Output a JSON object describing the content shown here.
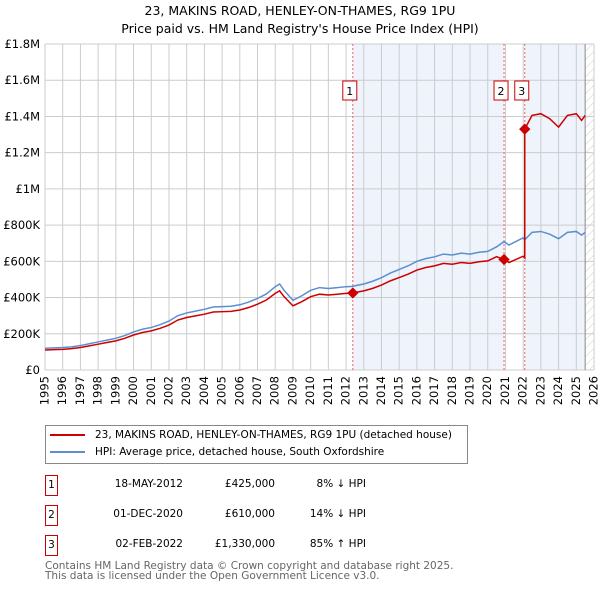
{
  "chart_data": {
    "type": "line",
    "title": "23, MAKINS ROAD, HENLEY-ON-THAMES, RG9 1PU",
    "subtitle": "Price paid vs. HM Land Registry's House Price Index (HPI)",
    "xlim": [
      1995,
      2026
    ],
    "ylim": [
      0,
      1800000
    ],
    "x_ticks": [
      "1995",
      "1996",
      "1997",
      "1998",
      "1999",
      "2000",
      "2001",
      "2002",
      "2003",
      "2004",
      "2005",
      "2006",
      "2007",
      "2008",
      "2009",
      "2010",
      "2011",
      "2012",
      "2013",
      "2014",
      "2015",
      "2016",
      "2017",
      "2018",
      "2019",
      "2020",
      "2021",
      "2022",
      "2023",
      "2024",
      "2025",
      "2026"
    ],
    "y_ticks": [
      {
        "v": 0,
        "label": "£0"
      },
      {
        "v": 200000,
        "label": "£200K"
      },
      {
        "v": 400000,
        "label": "£400K"
      },
      {
        "v": 600000,
        "label": "£600K"
      },
      {
        "v": 800000,
        "label": "£800K"
      },
      {
        "v": 1000000,
        "label": "£1M"
      },
      {
        "v": 1200000,
        "label": "£1.2M"
      },
      {
        "v": 1400000,
        "label": "£1.4M"
      },
      {
        "v": 1600000,
        "label": "£1.6M"
      },
      {
        "v": 1800000,
        "label": "£1.8M"
      }
    ],
    "grid": true,
    "data_end": 2025.5,
    "hpi": {
      "name": "HPI: Average price, detached house, South Oxfordshire",
      "color": "#5b8fd0",
      "x": [
        1995,
        1995.5,
        1996,
        1996.5,
        1997,
        1997.5,
        1998,
        1998.5,
        1999,
        1999.5,
        2000,
        2000.5,
        2001,
        2001.5,
        2002,
        2002.5,
        2003,
        2003.5,
        2004,
        2004.5,
        2005,
        2005.5,
        2006,
        2006.5,
        2007,
        2007.5,
        2008,
        2008.25,
        2008.5,
        2009,
        2009.5,
        2010,
        2010.5,
        2011,
        2011.5,
        2012,
        2012.38,
        2012.5,
        2013,
        2013.5,
        2014,
        2014.5,
        2015,
        2015.5,
        2016,
        2016.5,
        2017,
        2017.5,
        2018,
        2018.5,
        2019,
        2019.5,
        2020,
        2020.5,
        2020.92,
        2021.2,
        2021.5,
        2022,
        2022.09,
        2022.5,
        2023,
        2023.5,
        2024,
        2024.5,
        2025,
        2025.3,
        2025.5
      ],
      "y": [
        120000,
        122000,
        124000,
        128000,
        135000,
        145000,
        155000,
        165000,
        175000,
        190000,
        210000,
        225000,
        235000,
        250000,
        270000,
        300000,
        315000,
        325000,
        335000,
        348000,
        350000,
        352000,
        360000,
        375000,
        395000,
        420000,
        460000,
        475000,
        440000,
        385000,
        410000,
        440000,
        455000,
        450000,
        455000,
        460000,
        462000,
        465000,
        475000,
        490000,
        510000,
        535000,
        555000,
        575000,
        600000,
        615000,
        625000,
        640000,
        635000,
        645000,
        640000,
        650000,
        655000,
        680000,
        709000,
        690000,
        705000,
        730000,
        719000,
        760000,
        765000,
        750000,
        725000,
        760000,
        765000,
        745000,
        760000
      ]
    },
    "property": {
      "name": "23, MAKINS ROAD, HENLEY-ON-THAMES, RG9 1PU (detached house)",
      "color": "#cc0000"
    },
    "sales": [
      {
        "n": "1",
        "x": 2012.38,
        "date": "18-MAY-2012",
        "price": 425000,
        "price_label": "£425,000",
        "hpi_diff": "8% ↓ HPI"
      },
      {
        "n": "2",
        "x": 2020.92,
        "date": "01-DEC-2020",
        "price": 610000,
        "price_label": "£610,000",
        "hpi_diff": "14% ↓ HPI"
      },
      {
        "n": "3",
        "x": 2022.09,
        "date": "02-FEB-2022",
        "price": 1330000,
        "price_label": "£1,330,000",
        "hpi_diff": "85% ↑ HPI"
      }
    ]
  },
  "footer": [
    "Contains HM Land Registry data © Crown copyright and database right 2025.",
    "This data is licensed under the Open Government Licence v3.0."
  ]
}
